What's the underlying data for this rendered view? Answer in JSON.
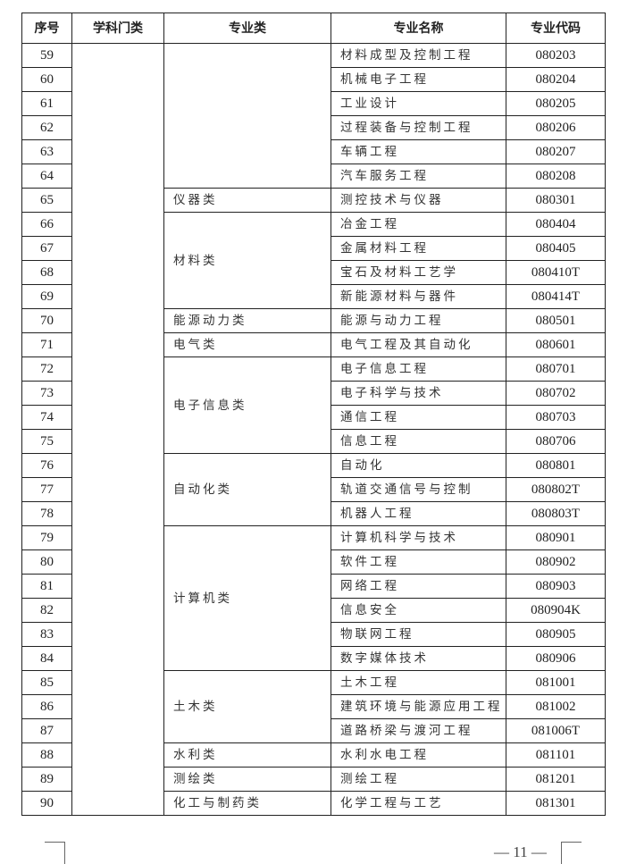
{
  "headers": {
    "no": "序号",
    "discipline": "学科门类",
    "category": "专业类",
    "name": "专业名称",
    "code": "专业代码"
  },
  "discipline": "",
  "groups": [
    {
      "category": "",
      "rows": [
        [
          "59",
          "材料成型及控制工程",
          "080203"
        ],
        [
          "60",
          "机械电子工程",
          "080204"
        ],
        [
          "61",
          "工业设计",
          "080205"
        ],
        [
          "62",
          "过程装备与控制工程",
          "080206"
        ],
        [
          "63",
          "车辆工程",
          "080207"
        ],
        [
          "64",
          "汽车服务工程",
          "080208"
        ]
      ]
    },
    {
      "category": "仪器类",
      "rows": [
        [
          "65",
          "测控技术与仪器",
          "080301"
        ]
      ]
    },
    {
      "category": "材料类",
      "rows": [
        [
          "66",
          "冶金工程",
          "080404"
        ],
        [
          "67",
          "金属材料工程",
          "080405"
        ],
        [
          "68",
          "宝石及材料工艺学",
          "080410T"
        ],
        [
          "69",
          "新能源材料与器件",
          "080414T"
        ]
      ]
    },
    {
      "category": "能源动力类",
      "rows": [
        [
          "70",
          "能源与动力工程",
          "080501"
        ]
      ]
    },
    {
      "category": "电气类",
      "rows": [
        [
          "71",
          "电气工程及其自动化",
          "080601"
        ]
      ]
    },
    {
      "category": "电子信息类",
      "rows": [
        [
          "72",
          "电子信息工程",
          "080701"
        ],
        [
          "73",
          "电子科学与技术",
          "080702"
        ],
        [
          "74",
          "通信工程",
          "080703"
        ],
        [
          "75",
          "信息工程",
          "080706"
        ]
      ]
    },
    {
      "category": "自动化类",
      "rows": [
        [
          "76",
          "自动化",
          "080801"
        ],
        [
          "77",
          "轨道交通信号与控制",
          "080802T"
        ],
        [
          "78",
          "机器人工程",
          "080803T"
        ]
      ]
    },
    {
      "category": "计算机类",
      "rows": [
        [
          "79",
          "计算机科学与技术",
          "080901"
        ],
        [
          "80",
          "软件工程",
          "080902"
        ],
        [
          "81",
          "网络工程",
          "080903"
        ],
        [
          "82",
          "信息安全",
          "080904K"
        ],
        [
          "83",
          "物联网工程",
          "080905"
        ],
        [
          "84",
          "数字媒体技术",
          "080906"
        ]
      ]
    },
    {
      "category": "土木类",
      "rows": [
        [
          "85",
          "土木工程",
          "081001"
        ],
        [
          "86",
          "建筑环境与能源应用工程",
          "081002"
        ],
        [
          "87",
          "道路桥梁与渡河工程",
          "081006T"
        ]
      ]
    },
    {
      "category": "水利类",
      "rows": [
        [
          "88",
          "水利水电工程",
          "081101"
        ]
      ]
    },
    {
      "category": "测绘类",
      "rows": [
        [
          "89",
          "测绘工程",
          "081201"
        ]
      ]
    },
    {
      "category": "化工与制药类",
      "rows": [
        [
          "90",
          "化学工程与工艺",
          "081301"
        ]
      ]
    }
  ],
  "page_number": "— 11 —"
}
